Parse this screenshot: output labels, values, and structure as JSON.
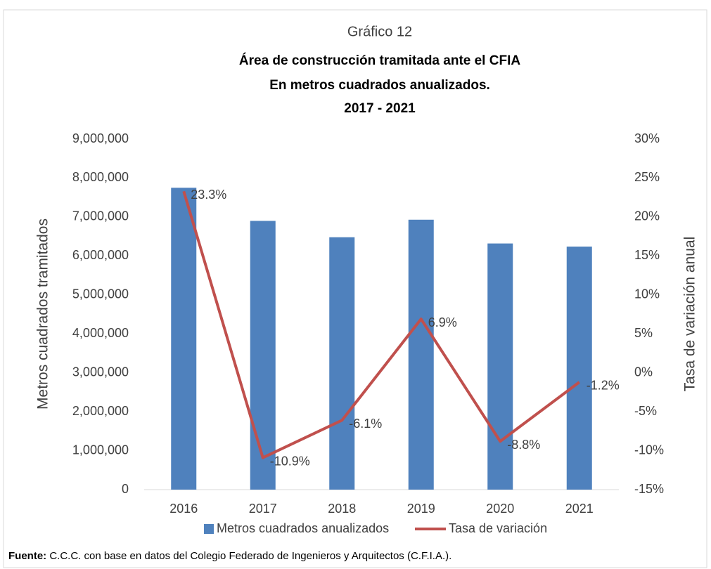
{
  "chart_data": {
    "type": "bar_line",
    "title": "Gráfico 12",
    "subtitle_lines": [
      "Área de construcción tramitada ante el CFIA",
      "En metros cuadrados anualizados.",
      "2017 - 2021"
    ],
    "ylabel": "Metros cuadrados tramitados",
    "y2label": "Tasa de variación anual",
    "categories": [
      "2016",
      "2017",
      "2018",
      "2019",
      "2020",
      "2021"
    ],
    "series": [
      {
        "name": "Metros cuadrados anualizados",
        "type": "bar",
        "color": "#4f81bd",
        "values": [
          7750000,
          6900000,
          6480000,
          6930000,
          6320000,
          6240000
        ]
      },
      {
        "name": "Tasa de variación",
        "type": "line",
        "axis": "y2",
        "color": "#c0504d",
        "values": [
          23.3,
          -10.9,
          -6.1,
          6.9,
          -8.8,
          -1.2
        ],
        "value_labels": [
          "23.3%",
          "-10.9%",
          "-6.1%",
          "6.9%",
          "-8.8%",
          "-1.2%"
        ]
      }
    ],
    "ylim": [
      0,
      9000000
    ],
    "yticks": [
      0,
      {
        "value": 1000000,
        "label": "1,000,000"
      },
      {
        "value": 2000000,
        "label": "2,000,000"
      },
      {
        "value": 3000000,
        "label": "3,000,000"
      },
      {
        "value": 4000000,
        "label": "4,000,000"
      },
      {
        "value": 5000000,
        "label": "5,000,000"
      },
      {
        "value": 6000000,
        "label": "6,000,000"
      },
      {
        "value": 7000000,
        "label": "7,000,000"
      },
      {
        "value": 8000000,
        "label": "8,000,000"
      },
      {
        "value": 9000000,
        "label": "9,000,000"
      }
    ],
    "y2lim": [
      -15,
      30
    ],
    "y2ticks": [
      {
        "value": -15,
        "label": "-15%"
      },
      {
        "value": -10,
        "label": "-10%"
      },
      {
        "value": -5,
        "label": "-5%"
      },
      {
        "value": 0,
        "label": "0%"
      },
      {
        "value": 5,
        "label": "5%"
      },
      {
        "value": 10,
        "label": "10%"
      },
      {
        "value": 15,
        "label": "15%"
      },
      {
        "value": 20,
        "label": "20%"
      },
      {
        "value": 25,
        "label": "25%"
      },
      {
        "value": 30,
        "label": "30%"
      }
    ],
    "grid": false,
    "legend": "bottom",
    "source_label": "Fuente:",
    "source": " C.C.C. con base en datos del Colegio Federado de Ingenieros y Arquitectos (C.F.I.A.)."
  }
}
